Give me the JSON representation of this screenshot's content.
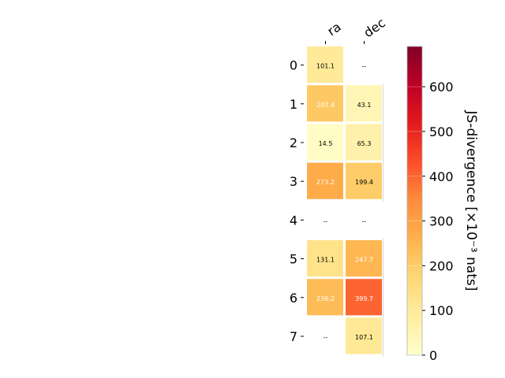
{
  "chart_data": {
    "type": "heatmap",
    "columns": [
      "ra",
      "dec"
    ],
    "rows": [
      "0",
      "1",
      "2",
      "3",
      "4",
      "5",
      "6",
      "7"
    ],
    "values": [
      [
        101.1,
        null
      ],
      [
        207.4,
        43.1
      ],
      [
        14.5,
        65.3
      ],
      [
        273.2,
        199.4
      ],
      [
        null,
        null
      ],
      [
        131.1,
        247.7
      ],
      [
        236.2,
        399.7
      ],
      [
        null,
        107.1
      ]
    ],
    "missing_label": "--",
    "colorbar": {
      "label": "JS-divergence [×10⁻³ nats]",
      "range": [
        0,
        690
      ],
      "ticks": [
        0,
        100,
        200,
        300,
        400,
        500,
        600
      ],
      "colormap": "YlOrRd"
    }
  }
}
